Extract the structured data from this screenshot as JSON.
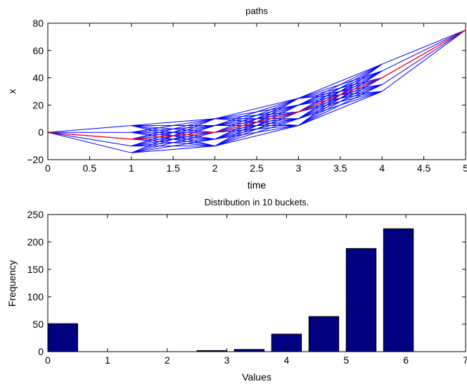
{
  "chart_data": [
    {
      "type": "line",
      "title": "paths",
      "xlabel": "time",
      "ylabel": "x",
      "xlim": [
        0,
        5
      ],
      "ylim": [
        -20,
        80
      ],
      "xticks": [
        "0",
        "0.5",
        "1",
        "1.5",
        "2",
        "2.5",
        "3",
        "3.5",
        "4",
        "4.5",
        "5"
      ],
      "yticks": [
        "−20",
        "0",
        "20",
        "40",
        "60",
        "80"
      ],
      "x": [
        0,
        1,
        2,
        3,
        4,
        5
      ],
      "start_value": 0,
      "end_value": 75,
      "node_values": [
        [
          -15,
          -10,
          -5,
          0,
          5
        ],
        [
          -10,
          -5,
          0,
          5,
          10
        ],
        [
          5,
          10,
          15,
          20,
          25
        ],
        [
          30,
          35,
          40,
          45,
          50
        ]
      ],
      "mean_path": [
        0,
        -5,
        0,
        15,
        40,
        75
      ],
      "colors": {
        "paths": "#0000ff",
        "mean": "#ff0000"
      }
    },
    {
      "type": "bar",
      "title": "Distribution in 10 buckets.",
      "xlabel": "Values",
      "ylabel": "Frequency",
      "xlim": [
        0,
        7
      ],
      "ylim": [
        0,
        250
      ],
      "xticks": [
        "0",
        "1",
        "2",
        "3",
        "4",
        "5",
        "6",
        "7"
      ],
      "yticks": [
        "0",
        "50",
        "100",
        "150",
        "200",
        "250"
      ],
      "x": [
        0.25,
        0.875,
        1.5,
        2.125,
        2.75,
        3.375,
        4.0,
        4.625,
        5.25,
        5.875
      ],
      "values": [
        51,
        0,
        0,
        0,
        2,
        4,
        32,
        64,
        188,
        224
      ],
      "colors": {
        "bar": "#000080",
        "edge": "#000000"
      }
    }
  ]
}
